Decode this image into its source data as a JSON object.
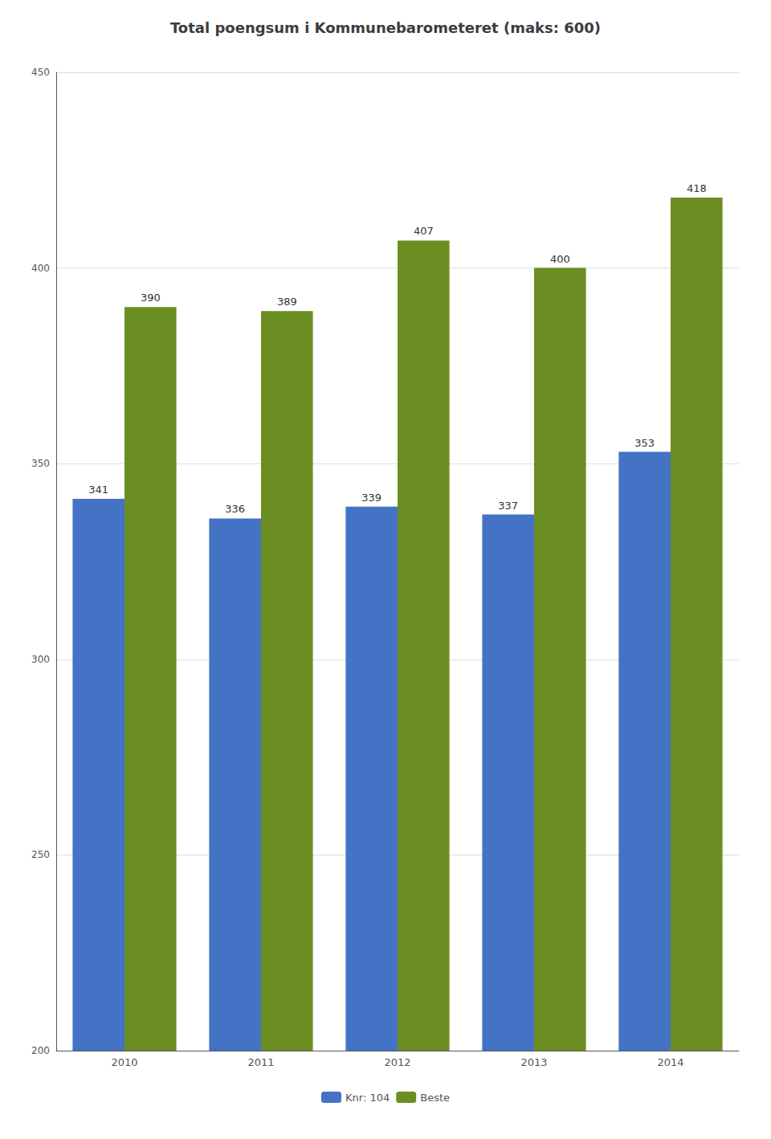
{
  "chart_data": {
    "type": "bar",
    "title": "Total poengsum i Kommunebarometeret (maks: 600)",
    "categories": [
      "2010",
      "2011",
      "2012",
      "2013",
      "2014"
    ],
    "series": [
      {
        "name": "Knr: 104",
        "color": "#4472C4",
        "values": [
          341,
          336,
          339,
          337,
          353
        ]
      },
      {
        "name": "Beste",
        "color": "#6B8E23",
        "values": [
          390,
          389,
          407,
          400,
          418
        ]
      }
    ],
    "ylim": [
      200,
      450
    ],
    "yticks": [
      200,
      250,
      300,
      350,
      400,
      450
    ],
    "grid": true,
    "data_labels": true,
    "legend": "bottom"
  }
}
